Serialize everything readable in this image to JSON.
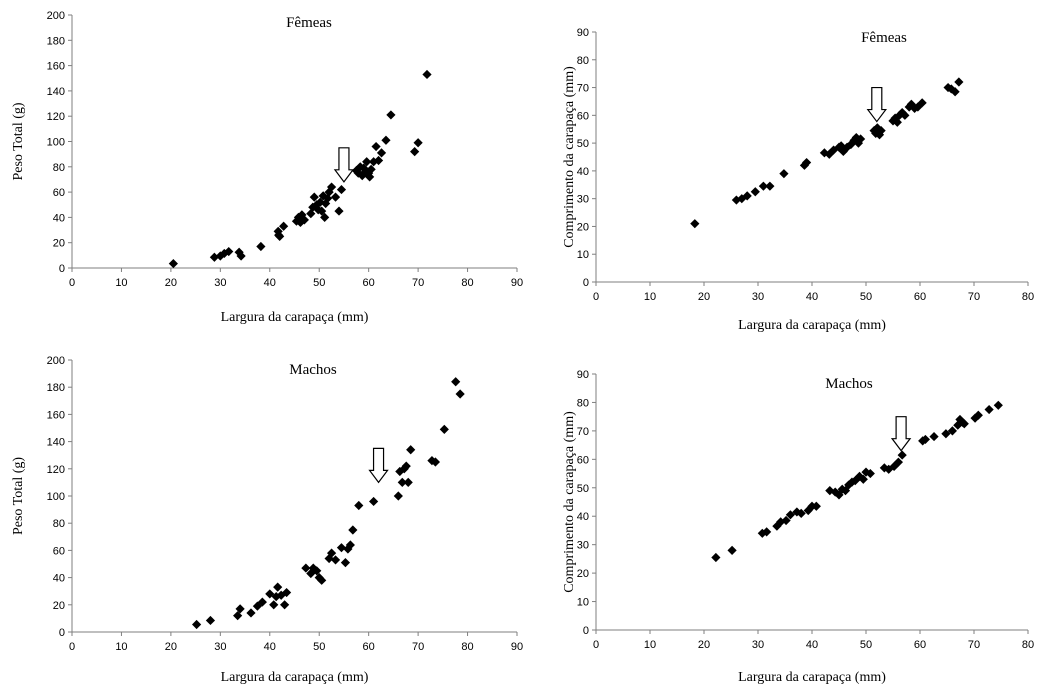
{
  "chart_data": [
    {
      "type": "scatter",
      "title": "Fêmeas",
      "xlabel": "Largura da carapaça (mm)",
      "ylabel": "Peso Total (g)",
      "xlim": [
        0,
        90
      ],
      "ylim": [
        0,
        200
      ],
      "xticks": [
        0,
        10,
        20,
        30,
        40,
        50,
        60,
        70,
        80,
        90
      ],
      "yticks": [
        0,
        20,
        40,
        60,
        80,
        100,
        120,
        140,
        160,
        180,
        200
      ],
      "grid": false,
      "arrow_x": 55,
      "arrow_y": 95,
      "points": [
        [
          20.5,
          3.5
        ],
        [
          28.8,
          8.5
        ],
        [
          30.0,
          9.5
        ],
        [
          30.8,
          11.5
        ],
        [
          31.7,
          13
        ],
        [
          33.8,
          12.5
        ],
        [
          34.2,
          9.5
        ],
        [
          38.2,
          17
        ],
        [
          41.7,
          29
        ],
        [
          41.8,
          26
        ],
        [
          42.0,
          25
        ],
        [
          42.8,
          33
        ],
        [
          45.4,
          37
        ],
        [
          45.8,
          40
        ],
        [
          46.2,
          36
        ],
        [
          46.5,
          42
        ],
        [
          47.0,
          38
        ],
        [
          48.3,
          43
        ],
        [
          48.7,
          48
        ],
        [
          49.0,
          56
        ],
        [
          49.5,
          50
        ],
        [
          49.8,
          46
        ],
        [
          50.2,
          52
        ],
        [
          50.5,
          45
        ],
        [
          50.8,
          57
        ],
        [
          51.1,
          40
        ],
        [
          51.3,
          51
        ],
        [
          51.7,
          55
        ],
        [
          52.0,
          60
        ],
        [
          52.5,
          64
        ],
        [
          53.3,
          56
        ],
        [
          54.0,
          45
        ],
        [
          54.5,
          62
        ],
        [
          57.5,
          77
        ],
        [
          57.9,
          75
        ],
        [
          58.3,
          80
        ],
        [
          58.7,
          73
        ],
        [
          59.0,
          79
        ],
        [
          59.3,
          76
        ],
        [
          59.6,
          84
        ],
        [
          60.0,
          75
        ],
        [
          60.2,
          72
        ],
        [
          60.5,
          78
        ],
        [
          61.0,
          84
        ],
        [
          61.5,
          96
        ],
        [
          62.0,
          85
        ],
        [
          62.6,
          91
        ],
        [
          63.5,
          101
        ],
        [
          64.5,
          121
        ],
        [
          69.3,
          92
        ],
        [
          70.0,
          99
        ],
        [
          71.8,
          153
        ]
      ]
    },
    {
      "type": "scatter",
      "title": "Fêmeas",
      "xlabel": "Largura da carapaça (mm)",
      "ylabel": "Comprimento da carapaça (mm)",
      "xlim": [
        0,
        80
      ],
      "ylim": [
        0,
        90
      ],
      "xticks": [
        0,
        10,
        20,
        30,
        40,
        50,
        60,
        70,
        80
      ],
      "yticks": [
        0,
        10,
        20,
        30,
        40,
        50,
        60,
        70,
        80,
        90
      ],
      "grid": false,
      "arrow_x": 52,
      "arrow_y": 70,
      "points": [
        [
          18.3,
          21
        ],
        [
          26.0,
          29.5
        ],
        [
          27.0,
          30
        ],
        [
          28.0,
          31
        ],
        [
          29.5,
          32.5
        ],
        [
          31.0,
          34.5
        ],
        [
          32.2,
          34.5
        ],
        [
          34.8,
          39
        ],
        [
          38.6,
          42
        ],
        [
          39.0,
          43
        ],
        [
          42.3,
          46.5
        ],
        [
          43.2,
          46
        ],
        [
          44.0,
          47.5
        ],
        [
          45.0,
          48.5
        ],
        [
          45.4,
          49
        ],
        [
          45.8,
          47
        ],
        [
          46.5,
          48.5
        ],
        [
          47.2,
          49.5
        ],
        [
          47.8,
          51
        ],
        [
          48.2,
          52
        ],
        [
          48.6,
          50
        ],
        [
          49.0,
          51.5
        ],
        [
          51.5,
          54.5
        ],
        [
          51.8,
          53.5
        ],
        [
          52.1,
          55.5
        ],
        [
          52.5,
          53
        ],
        [
          52.8,
          54.5
        ],
        [
          55.0,
          58
        ],
        [
          55.4,
          59
        ],
        [
          55.8,
          57.5
        ],
        [
          56.2,
          60
        ],
        [
          56.7,
          61
        ],
        [
          57.2,
          60
        ],
        [
          58.0,
          63
        ],
        [
          58.4,
          64
        ],
        [
          59.0,
          62.5
        ],
        [
          59.6,
          63
        ],
        [
          60.4,
          64.5
        ],
        [
          65.2,
          70
        ],
        [
          65.8,
          69.5
        ],
        [
          66.5,
          68.5
        ],
        [
          67.2,
          72
        ]
      ]
    },
    {
      "type": "scatter",
      "title": "Machos",
      "xlabel": "Largura da carapaça (mm)",
      "ylabel": "Peso Total (g)",
      "xlim": [
        0,
        90
      ],
      "ylim": [
        0,
        200
      ],
      "xticks": [
        0,
        10,
        20,
        30,
        40,
        50,
        60,
        70,
        80,
        90
      ],
      "yticks": [
        0,
        20,
        40,
        60,
        80,
        100,
        120,
        140,
        160,
        180,
        200
      ],
      "grid": false,
      "arrow_x": 62,
      "arrow_y": 135,
      "points": [
        [
          25.2,
          5.5
        ],
        [
          28.0,
          8.5
        ],
        [
          33.5,
          12
        ],
        [
          34.0,
          17
        ],
        [
          36.2,
          14
        ],
        [
          37.5,
          19
        ],
        [
          38.5,
          22
        ],
        [
          40.0,
          28
        ],
        [
          40.8,
          20
        ],
        [
          41.3,
          26
        ],
        [
          41.6,
          33
        ],
        [
          42.3,
          27
        ],
        [
          43.0,
          20
        ],
        [
          43.4,
          29
        ],
        [
          47.3,
          47
        ],
        [
          48.3,
          43
        ],
        [
          48.8,
          47
        ],
        [
          49.5,
          45
        ],
        [
          50.0,
          40
        ],
        [
          50.5,
          38
        ],
        [
          52.0,
          54
        ],
        [
          52.5,
          58
        ],
        [
          53.3,
          53
        ],
        [
          54.5,
          62
        ],
        [
          55.3,
          51
        ],
        [
          55.8,
          61
        ],
        [
          56.3,
          64
        ],
        [
          56.8,
          75
        ],
        [
          58.0,
          93
        ],
        [
          61.0,
          96
        ],
        [
          66.0,
          100
        ],
        [
          66.3,
          118
        ],
        [
          66.8,
          110
        ],
        [
          67.2,
          120
        ],
        [
          67.6,
          122
        ],
        [
          68.0,
          110
        ],
        [
          68.5,
          134
        ],
        [
          72.8,
          126
        ],
        [
          73.5,
          125
        ],
        [
          75.3,
          149
        ],
        [
          77.6,
          184
        ],
        [
          78.5,
          175
        ]
      ]
    },
    {
      "type": "scatter",
      "title": "Machos",
      "xlabel": "Largura da carapaça (mm)",
      "ylabel": "Comprimento da carapaça (mm)",
      "xlim": [
        0,
        80
      ],
      "ylim": [
        0,
        90
      ],
      "xticks": [
        0,
        10,
        20,
        30,
        40,
        50,
        60,
        70,
        80
      ],
      "yticks": [
        0,
        10,
        20,
        30,
        40,
        50,
        60,
        70,
        80,
        90
      ],
      "grid": false,
      "arrow_x": 56.5,
      "arrow_y": 75,
      "points": [
        [
          22.2,
          25.5
        ],
        [
          25.2,
          28
        ],
        [
          30.8,
          34
        ],
        [
          31.6,
          34.5
        ],
        [
          33.5,
          36.5
        ],
        [
          34.2,
          38
        ],
        [
          35.2,
          38.5
        ],
        [
          36.0,
          40.5
        ],
        [
          37.2,
          41.5
        ],
        [
          38.0,
          41
        ],
        [
          39.3,
          42
        ],
        [
          40.0,
          43.5
        ],
        [
          40.8,
          43.5
        ],
        [
          43.3,
          49
        ],
        [
          44.3,
          48.5
        ],
        [
          45.0,
          47.5
        ],
        [
          45.6,
          49.5
        ],
        [
          46.2,
          49
        ],
        [
          46.8,
          51
        ],
        [
          47.4,
          52
        ],
        [
          48.0,
          52.5
        ],
        [
          48.8,
          54
        ],
        [
          49.5,
          53
        ],
        [
          50.0,
          55.5
        ],
        [
          50.8,
          55
        ],
        [
          53.4,
          57
        ],
        [
          54.2,
          56.5
        ],
        [
          55.2,
          57.5
        ],
        [
          56.0,
          59
        ],
        [
          56.7,
          61.5
        ],
        [
          60.5,
          66.5
        ],
        [
          61.0,
          67
        ],
        [
          62.6,
          68
        ],
        [
          64.8,
          69
        ],
        [
          66.0,
          70
        ],
        [
          67.0,
          72
        ],
        [
          67.4,
          74
        ],
        [
          67.9,
          73
        ],
        [
          68.2,
          72.5
        ],
        [
          70.2,
          74.5
        ],
        [
          70.8,
          75.5
        ],
        [
          72.8,
          77.5
        ],
        [
          74.5,
          79
        ]
      ]
    }
  ]
}
